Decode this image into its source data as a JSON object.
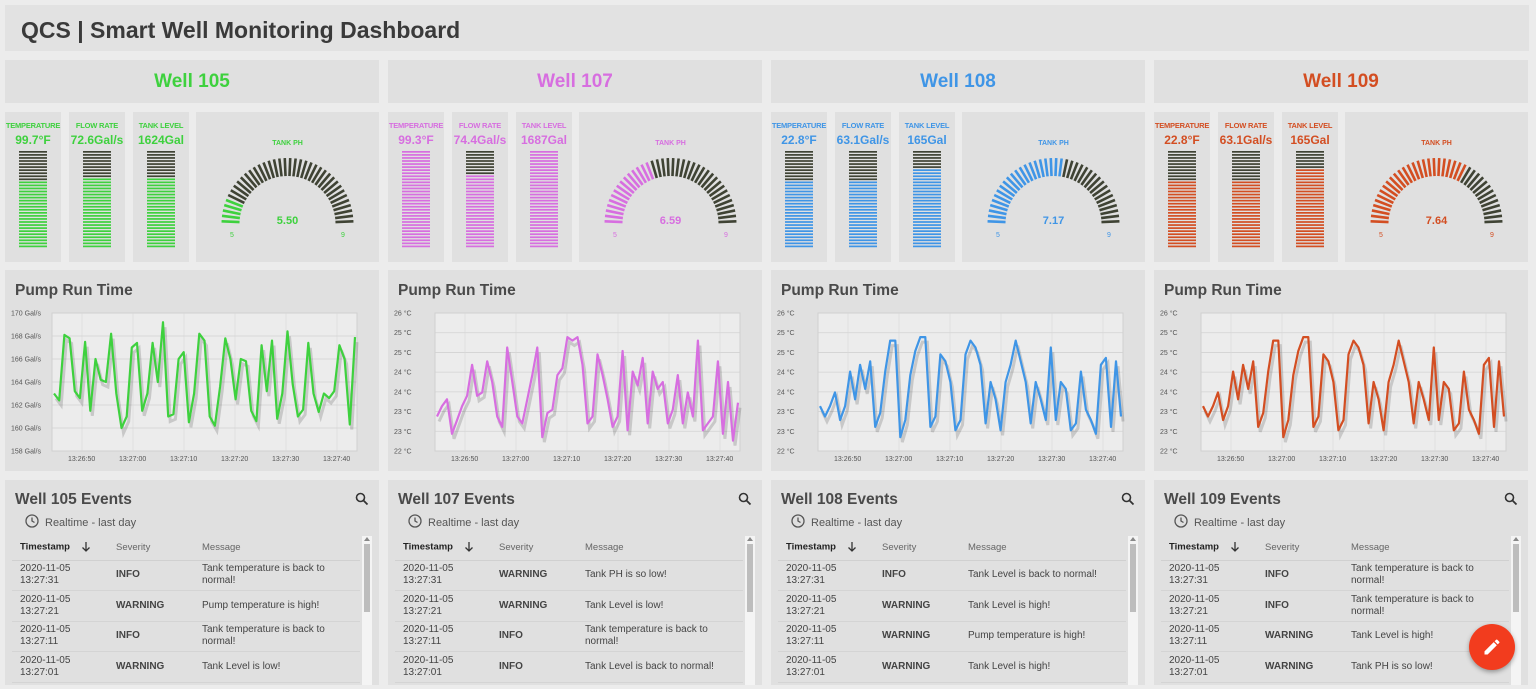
{
  "app": {
    "title": "QCS | Smart Well Monitoring Dashboard"
  },
  "labels": {
    "temperature": "TEMPERATURE",
    "flow_rate": "FLOW RATE",
    "tank_level": "TANK LEVEL",
    "tank_ph": "TANK PH",
    "pump_run_time": "Pump Run Time",
    "realtime": "Realtime - last day",
    "col_timestamp": "Timestamp",
    "col_severity": "Severity",
    "col_message": "Message"
  },
  "icons": {
    "search": "search-icon",
    "clock": "clock-icon",
    "sort": "arrow-down-icon",
    "edit": "pencil-icon"
  },
  "wells": [
    {
      "name": "Well 105",
      "color": "#3ed13e",
      "temperature": "99.7°F",
      "flow_rate": "72.6Gal/s",
      "tank_level": "1624Gal",
      "temperature_fill": 0.68,
      "flow_rate_fill": 0.7,
      "tank_level_fill": 0.7,
      "ph": "5.50",
      "ph_value": 5.5,
      "ph_min": "5",
      "ph_max": "9",
      "ph_min_value": 5,
      "ph_max_value": 9,
      "events_title": "Well 105 Events",
      "chart_data": {
        "type": "line",
        "yticks": [
          "170 Gal/s",
          "168 Gal/s",
          "166 Gal/s",
          "164 Gal/s",
          "162 Gal/s",
          "160 Gal/s",
          "158 Gal/s"
        ],
        "ylim": [
          158,
          170
        ],
        "xticks": [
          "13:26:50",
          "13:27:00",
          "13:27:10",
          "13:27:20",
          "13:27:30",
          "13:27:40"
        ],
        "values": [
          163.0,
          162.4,
          168.1,
          167.8,
          163.2,
          162.6,
          167.5,
          161.5,
          166.0,
          164.2,
          164.0,
          168.2,
          163.0,
          160.0,
          161.0,
          167.0,
          167.4,
          161.5,
          163.0,
          167.4,
          164.0,
          169.2,
          161.0,
          161.2,
          166.0,
          166.6,
          160.5,
          163.0,
          168.2,
          167.6,
          161.0,
          160.2,
          163.6,
          167.8,
          166.0,
          162.5,
          166.0,
          165.8,
          161.5,
          160.6,
          167.2,
          163.2,
          167.6,
          160.8,
          163.0,
          168.4,
          163.8,
          161.0,
          161.6,
          167.4,
          163.0,
          161.4,
          163.0,
          162.6,
          163.2,
          167.2,
          166.0,
          160.3,
          167.9
        ]
      },
      "events": [
        {
          "ts1": "2020-11-05",
          "ts2": "13:27:31",
          "severity": "INFO",
          "message": "Tank temperature is back to normal!"
        },
        {
          "ts1": "2020-11-05",
          "ts2": "13:27:21",
          "severity": "WARNING",
          "message": "Pump temperature is high!"
        },
        {
          "ts1": "2020-11-05",
          "ts2": "13:27:11",
          "severity": "INFO",
          "message": "Tank temperature is back to normal!"
        },
        {
          "ts1": "2020-11-05",
          "ts2": "13:27:01",
          "severity": "WARNING",
          "message": "Tank Level is low!"
        }
      ]
    },
    {
      "name": "Well 107",
      "color": "#d76ee0",
      "temperature": "99.3°F",
      "flow_rate": "74.4Gal/s",
      "tank_level": "1687Gal",
      "temperature_fill": 1.0,
      "flow_rate_fill": 0.75,
      "tank_level_fill": 1.0,
      "ph": "6.59",
      "ph_value": 6.59,
      "ph_min": "5",
      "ph_max": "9",
      "ph_min_value": 5,
      "ph_max_value": 9,
      "events_title": "Well 107 Events",
      "chart_data": {
        "type": "line",
        "yticks": [
          "26 °C",
          "25 °C",
          "25 °C",
          "24 °C",
          "24 °C",
          "23 °C",
          "23 °C",
          "22 °C"
        ],
        "ylim": [
          22,
          26
        ],
        "xticks": [
          "13:26:50",
          "13:27:00",
          "13:27:10",
          "13:27:20",
          "13:27:30",
          "13:27:40"
        ],
        "values": [
          23.0,
          23.3,
          23.5,
          22.5,
          22.9,
          23.3,
          23.6,
          24.5,
          23.6,
          23.7,
          24.6,
          24.0,
          23.0,
          22.7,
          25.0,
          24.0,
          23.0,
          22.8,
          23.5,
          24.2,
          25.0,
          22.4,
          23.1,
          23.2,
          24.2,
          24.4,
          25.3,
          25.2,
          25.3,
          24.5,
          22.8,
          23.0,
          24.8,
          24.2,
          23.5,
          22.7,
          23.0,
          24.9,
          22.6,
          24.3,
          23.9,
          24.7,
          22.8,
          24.3,
          23.8,
          24.0,
          22.8,
          23.2,
          24.2,
          22.8,
          23.7,
          23.0,
          25.2,
          22.6,
          22.8,
          23.0,
          24.6,
          22.5,
          24.0,
          22.3,
          23.4
        ]
      },
      "events": [
        {
          "ts1": "2020-11-05",
          "ts2": "13:27:31",
          "severity": "WARNING",
          "message": "Tank PH is so low!"
        },
        {
          "ts1": "2020-11-05",
          "ts2": "13:27:21",
          "severity": "WARNING",
          "message": "Tank Level is low!"
        },
        {
          "ts1": "2020-11-05",
          "ts2": "13:27:11",
          "severity": "INFO",
          "message": "Tank temperature is back to normal!"
        },
        {
          "ts1": "2020-11-05",
          "ts2": "13:27:01",
          "severity": "INFO",
          "message": "Tank Level is back to normal!"
        }
      ]
    },
    {
      "name": "Well 108",
      "color": "#3f95e6",
      "temperature": "22.8°F",
      "flow_rate": "63.1Gal/s",
      "tank_level": "165Gal",
      "temperature_fill": 0.67,
      "flow_rate_fill": 0.67,
      "tank_level_fill": 0.8,
      "ph": "7.17",
      "ph_value": 7.17,
      "ph_min": "5",
      "ph_max": "9",
      "ph_min_value": 5,
      "ph_max_value": 9,
      "events_title": "Well 108 Events",
      "chart_data": {
        "type": "line",
        "yticks": [
          "26 °C",
          "25 °C",
          "25 °C",
          "24 °C",
          "24 °C",
          "23 °C",
          "23 °C",
          "22 °C"
        ],
        "ylim": [
          22,
          26
        ],
        "xticks": [
          "13:26:50",
          "13:27:00",
          "13:27:10",
          "13:27:20",
          "13:27:30",
          "13:27:40"
        ],
        "values": [
          23.3,
          23.0,
          23.3,
          23.7,
          22.9,
          23.3,
          24.3,
          23.5,
          24.5,
          23.8,
          24.6,
          22.7,
          23.1,
          24.3,
          25.2,
          25.2,
          22.4,
          22.9,
          24.2,
          24.9,
          25.3,
          25.3,
          22.7,
          23.0,
          24.8,
          24.6,
          24.0,
          22.6,
          22.9,
          24.8,
          25.2,
          25.0,
          24.5,
          22.8,
          24.0,
          23.5,
          22.6,
          24.0,
          24.5,
          25.2,
          24.6,
          24.0,
          22.8,
          24.0,
          23.5,
          22.9,
          25.0,
          22.9,
          24.0,
          23.8,
          22.6,
          22.8,
          24.3,
          23.2,
          22.9,
          22.5,
          24.5,
          24.7,
          22.7,
          24.6,
          23.0
        ]
      },
      "events": [
        {
          "ts1": "2020-11-05",
          "ts2": "13:27:31",
          "severity": "INFO",
          "message": "Tank Level is back to normal!"
        },
        {
          "ts1": "2020-11-05",
          "ts2": "13:27:21",
          "severity": "WARNING",
          "message": "Tank Level is high!"
        },
        {
          "ts1": "2020-11-05",
          "ts2": "13:27:11",
          "severity": "WARNING",
          "message": "Pump temperature is high!"
        },
        {
          "ts1": "2020-11-05",
          "ts2": "13:27:01",
          "severity": "WARNING",
          "message": "Tank Level is high!"
        }
      ]
    },
    {
      "name": "Well 109",
      "color": "#d34e22",
      "temperature": "22.8°F",
      "flow_rate": "63.1Gal/s",
      "tank_level": "165Gal",
      "temperature_fill": 0.67,
      "flow_rate_fill": 0.67,
      "tank_level_fill": 0.8,
      "ph": "7.64",
      "ph_value": 7.64,
      "ph_min": "5",
      "ph_max": "9",
      "ph_min_value": 5,
      "ph_max_value": 9,
      "events_title": "Well 109 Events",
      "chart_data": {
        "type": "line",
        "yticks": [
          "26 °C",
          "25 °C",
          "25 °C",
          "24 °C",
          "24 °C",
          "23 °C",
          "23 °C",
          "22 °C"
        ],
        "ylim": [
          22,
          26
        ],
        "xticks": [
          "13:26:50",
          "13:27:00",
          "13:27:10",
          "13:27:20",
          "13:27:30",
          "13:27:40"
        ],
        "values": [
          23.3,
          23.0,
          23.3,
          23.7,
          22.9,
          23.3,
          24.3,
          23.5,
          24.5,
          23.8,
          24.6,
          22.7,
          23.1,
          24.3,
          25.2,
          25.2,
          22.4,
          22.9,
          24.2,
          24.9,
          25.3,
          25.3,
          22.7,
          23.0,
          24.8,
          24.6,
          24.0,
          22.6,
          22.9,
          24.8,
          25.2,
          25.0,
          24.5,
          22.8,
          24.0,
          23.5,
          22.6,
          24.0,
          24.5,
          25.2,
          24.6,
          24.0,
          22.8,
          24.0,
          23.5,
          22.9,
          25.0,
          22.9,
          24.0,
          23.8,
          22.6,
          22.8,
          24.3,
          23.2,
          22.9,
          22.5,
          24.5,
          24.7,
          22.7,
          24.6,
          23.0
        ]
      },
      "events": [
        {
          "ts1": "2020-11-05",
          "ts2": "13:27:31",
          "severity": "INFO",
          "message": "Tank temperature is back to normal!"
        },
        {
          "ts1": "2020-11-05",
          "ts2": "13:27:21",
          "severity": "INFO",
          "message": "Tank temperature is back to normal!"
        },
        {
          "ts1": "2020-11-05",
          "ts2": "13:27:11",
          "severity": "WARNING",
          "message": "Tank Level is high!"
        },
        {
          "ts1": "2020-11-05",
          "ts2": "13:27:01",
          "severity": "WARNING",
          "message": "Tank PH is so low!"
        }
      ]
    }
  ],
  "colors": {
    "inactive_segment": "#3f4334",
    "info": "#22a02a",
    "warning": "#e5261b",
    "fab": "#f23c1e"
  }
}
